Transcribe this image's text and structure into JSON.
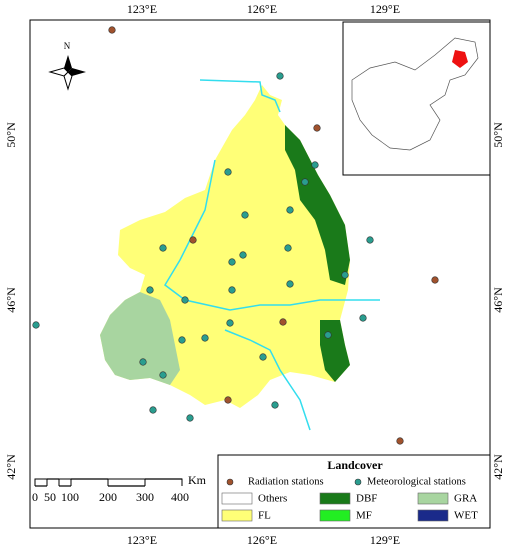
{
  "axes": {
    "top": [
      "123°E",
      "126°E",
      "129°E"
    ],
    "bottom": [
      "123°E",
      "126°E",
      "129°E"
    ],
    "left": [
      "50°N",
      "46°N",
      "42°N"
    ],
    "right": [
      "50°N",
      "46°N",
      "42°N"
    ]
  },
  "north_arrow": "N",
  "scale_bar": {
    "labels": [
      "0",
      "50",
      "100",
      "200",
      "300",
      "400"
    ],
    "unit": "Km"
  },
  "legend": {
    "title": "Landcover",
    "stations": [
      {
        "label": "Radiation stations",
        "color": "#a0522d"
      },
      {
        "label": "Meteorological stations",
        "color": "#2a9d8f"
      }
    ],
    "classes": [
      {
        "label": "Others",
        "color": "#ffffff"
      },
      {
        "label": "DBF",
        "color": "#1a7a1a"
      },
      {
        "label": "GRA",
        "color": "#a8d5a0"
      },
      {
        "label": "FL",
        "color": "#ffff77"
      },
      {
        "label": "MF",
        "color": "#22ee22"
      },
      {
        "label": "WET",
        "color": "#1a2a8a"
      }
    ]
  }
}
